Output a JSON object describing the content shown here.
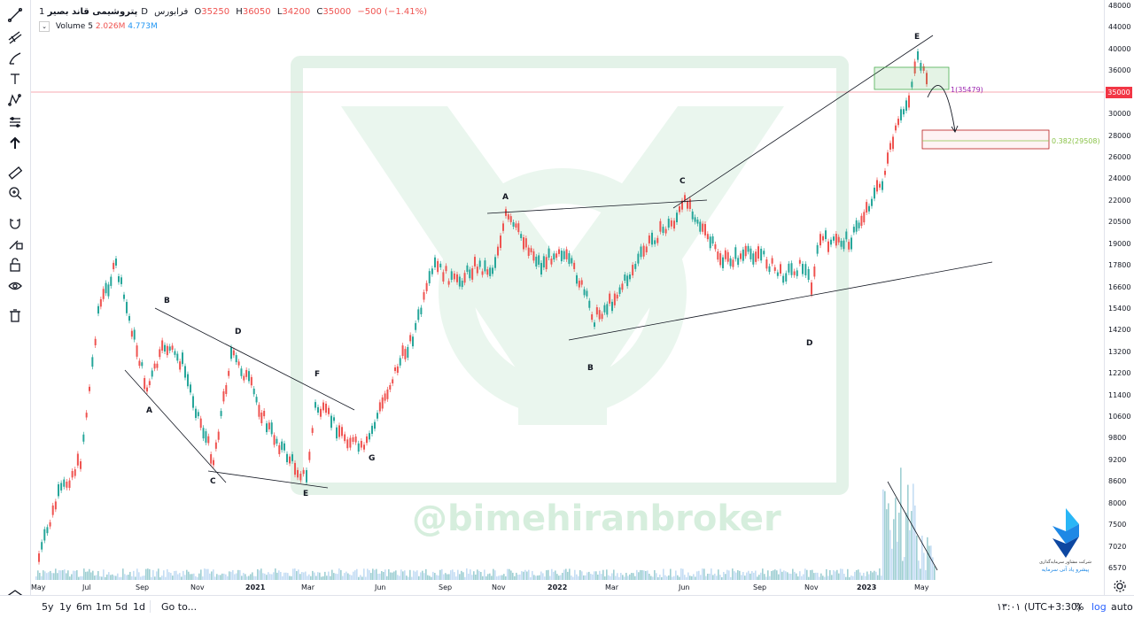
{
  "legend": {
    "symbol": "پتروشیمی قاند بصیر",
    "interval": "1D",
    "exchange": "فرابورس",
    "open_label": "O",
    "open": "35250",
    "high_label": "H",
    "high": "36050",
    "low_label": "L",
    "low": "34200",
    "close_label": "C",
    "close": "35000",
    "change": "−500 (−1.41%)",
    "volume_label": "Volume 5",
    "volume_1": "2.026M",
    "volume_2": "4.773M"
  },
  "watermark": "@bimehiranbroker",
  "price_axis": [
    "48000",
    "44000",
    "40000",
    "36000",
    "33000",
    "30000",
    "28000",
    "26000",
    "24000",
    "22000",
    "20500",
    "19000",
    "17800",
    "16600",
    "15400",
    "14200",
    "13200",
    "12200",
    "11400",
    "10600",
    "9800",
    "9200",
    "8600",
    "8000",
    "7500",
    "7020",
    "6570"
  ],
  "current_price": "35000",
  "fib_levels": {
    "level_1": "1(35479)",
    "level_382": "0.382(29508)"
  },
  "time_axis": [
    {
      "label": "May",
      "bold": false
    },
    {
      "label": "Jul",
      "bold": false
    },
    {
      "label": "Sep",
      "bold": false
    },
    {
      "label": "Nov",
      "bold": false
    },
    {
      "label": "2021",
      "bold": true
    },
    {
      "label": "Mar",
      "bold": false
    },
    {
      "label": "Jun",
      "bold": false
    },
    {
      "label": "Sep",
      "bold": false
    },
    {
      "label": "Nov",
      "bold": false
    },
    {
      "label": "2022",
      "bold": true
    },
    {
      "label": "Mar",
      "bold": false
    },
    {
      "label": "Jun",
      "bold": false
    },
    {
      "label": "Sep",
      "bold": false
    },
    {
      "label": "Nov",
      "bold": false
    },
    {
      "label": "2023",
      "bold": true
    },
    {
      "label": "May",
      "bold": false
    }
  ],
  "wave_labels": [
    "A",
    "B",
    "C",
    "D",
    "E",
    "F",
    "G",
    "A",
    "B",
    "C",
    "D",
    "E"
  ],
  "range_buttons": [
    "5y",
    "1y",
    "6m",
    "1m",
    "5d",
    "1d"
  ],
  "goto_label": "Go to...",
  "clock": "۱۳:۰۱ (UTC+3:30)",
  "scale_buttons": {
    "percent": "%",
    "log": "log",
    "auto": "auto"
  },
  "logo_caption_1": "شرکت مشاور سرمایه‌گذاری",
  "logo_caption_2": "پیشرو یاد آتی سرمایه",
  "colors": {
    "up": "#26a69a",
    "down": "#ef5350",
    "current": "#f23645",
    "volume_up": "#87c3c8",
    "volume_down": "#b5d4f1",
    "accent": "#2962ff"
  }
}
